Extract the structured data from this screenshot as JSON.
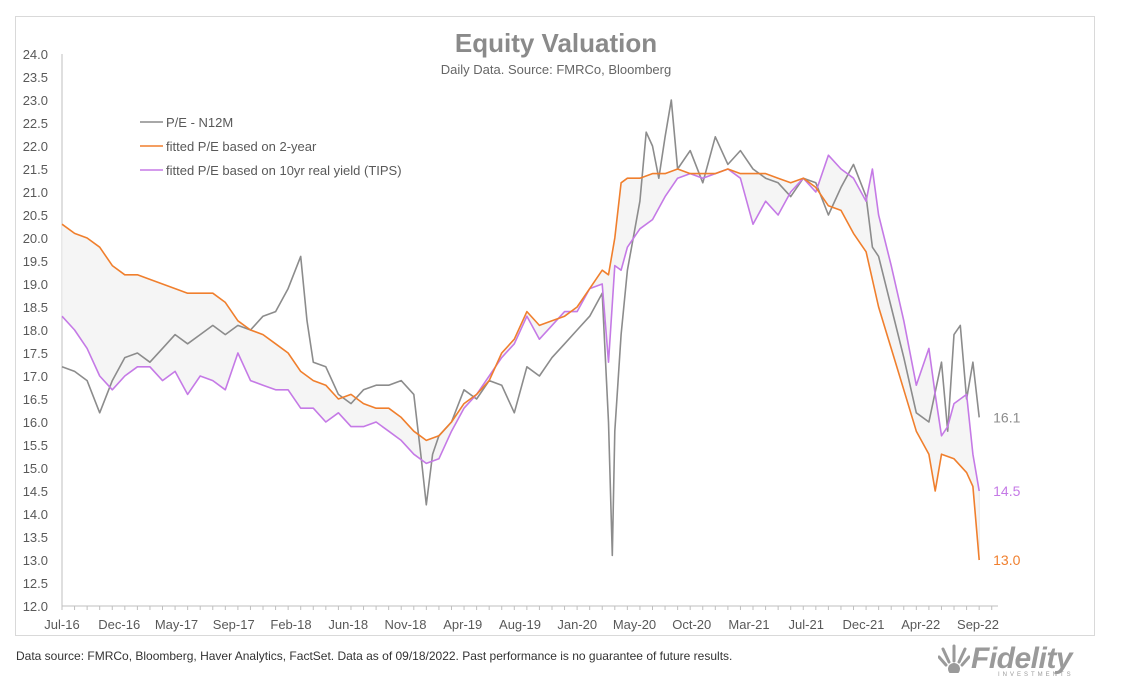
{
  "chart_data": {
    "type": "line",
    "title": "Equity Valuation",
    "subtitle": "Daily Data. Source: FMRCo, Bloomberg",
    "xlabel": "",
    "ylabel": "",
    "ylim": [
      12.0,
      24.0
    ],
    "y_ticks": [
      "12.0",
      "12.5",
      "13.0",
      "13.5",
      "14.0",
      "14.5",
      "15.0",
      "15.5",
      "16.0",
      "16.5",
      "17.0",
      "17.5",
      "18.0",
      "18.5",
      "19.0",
      "19.5",
      "20.0",
      "20.5",
      "21.0",
      "21.5",
      "22.0",
      "22.5",
      "23.0",
      "23.5",
      "24.0"
    ],
    "x_ticks": [
      "Jul-16",
      "Dec-16",
      "May-17",
      "Sep-17",
      "Feb-18",
      "Jun-18",
      "Nov-18",
      "Apr-19",
      "Aug-19",
      "Jan-20",
      "May-20",
      "Oct-20",
      "Mar-21",
      "Jul-21",
      "Dec-21",
      "Apr-22",
      "Sep-22"
    ],
    "x_range_months": [
      0,
      74.5
    ],
    "legend_position": "top-left",
    "grid": false,
    "shaded_band_between": [
      "fitted P/E based on 2-year",
      "fitted P/E based on 10yr real yield (TIPS)"
    ],
    "band_color": "#f5f5f5",
    "series": [
      {
        "name": "P/E - N12M",
        "color": "#8c8c8c",
        "end_label": "16.1",
        "points": [
          [
            0,
            17.2
          ],
          [
            1,
            17.1
          ],
          [
            2,
            16.9
          ],
          [
            3,
            16.2
          ],
          [
            4,
            16.9
          ],
          [
            5,
            17.4
          ],
          [
            6,
            17.5
          ],
          [
            7,
            17.3
          ],
          [
            8,
            17.6
          ],
          [
            9,
            17.9
          ],
          [
            10,
            17.7
          ],
          [
            11,
            17.9
          ],
          [
            12,
            18.1
          ],
          [
            13,
            17.9
          ],
          [
            14,
            18.1
          ],
          [
            15,
            18.0
          ],
          [
            16,
            18.3
          ],
          [
            17,
            18.4
          ],
          [
            18,
            18.9
          ],
          [
            19,
            19.6
          ],
          [
            19.5,
            18.2
          ],
          [
            20,
            17.3
          ],
          [
            21,
            17.2
          ],
          [
            22,
            16.6
          ],
          [
            23,
            16.4
          ],
          [
            24,
            16.7
          ],
          [
            25,
            16.8
          ],
          [
            26,
            16.8
          ],
          [
            27,
            16.9
          ],
          [
            28,
            16.6
          ],
          [
            28.6,
            15.2
          ],
          [
            29,
            14.2
          ],
          [
            29.5,
            15.3
          ],
          [
            30,
            15.7
          ],
          [
            31,
            16.0
          ],
          [
            32,
            16.7
          ],
          [
            33,
            16.5
          ],
          [
            34,
            16.9
          ],
          [
            35,
            16.8
          ],
          [
            36,
            16.2
          ],
          [
            37,
            17.2
          ],
          [
            38,
            17.0
          ],
          [
            39,
            17.4
          ],
          [
            40,
            17.7
          ],
          [
            41,
            18.0
          ],
          [
            42,
            18.3
          ],
          [
            43,
            18.8
          ],
          [
            43.5,
            16.0
          ],
          [
            43.8,
            13.1
          ],
          [
            44,
            15.8
          ],
          [
            44.5,
            17.9
          ],
          [
            45,
            19.3
          ],
          [
            46,
            20.8
          ],
          [
            46.5,
            22.3
          ],
          [
            47,
            22.0
          ],
          [
            47.5,
            21.3
          ],
          [
            48,
            22.2
          ],
          [
            48.5,
            23.0
          ],
          [
            49,
            21.5
          ],
          [
            50,
            21.9
          ],
          [
            51,
            21.2
          ],
          [
            52,
            22.2
          ],
          [
            53,
            21.6
          ],
          [
            54,
            21.9
          ],
          [
            55,
            21.5
          ],
          [
            56,
            21.3
          ],
          [
            57,
            21.2
          ],
          [
            58,
            20.9
          ],
          [
            59,
            21.3
          ],
          [
            60,
            21.2
          ],
          [
            61,
            20.5
          ],
          [
            62,
            21.1
          ],
          [
            63,
            21.6
          ],
          [
            64,
            20.9
          ],
          [
            64.5,
            19.8
          ],
          [
            65,
            19.6
          ],
          [
            66,
            18.5
          ],
          [
            67,
            17.4
          ],
          [
            68,
            16.2
          ],
          [
            69,
            16.0
          ],
          [
            70,
            17.3
          ],
          [
            70.5,
            15.8
          ],
          [
            71,
            17.9
          ],
          [
            71.5,
            18.1
          ],
          [
            72,
            16.5
          ],
          [
            72.5,
            17.3
          ],
          [
            73,
            16.1
          ]
        ]
      },
      {
        "name": "fitted P/E based on 2-year",
        "color": "#f07f2d",
        "end_label": "13.0",
        "points": [
          [
            0,
            20.3
          ],
          [
            1,
            20.1
          ],
          [
            2,
            20.0
          ],
          [
            3,
            19.8
          ],
          [
            4,
            19.4
          ],
          [
            5,
            19.2
          ],
          [
            6,
            19.2
          ],
          [
            7,
            19.1
          ],
          [
            8,
            19.0
          ],
          [
            9,
            18.9
          ],
          [
            10,
            18.8
          ],
          [
            11,
            18.8
          ],
          [
            12,
            18.8
          ],
          [
            13,
            18.6
          ],
          [
            14,
            18.2
          ],
          [
            15,
            18.0
          ],
          [
            16,
            17.9
          ],
          [
            17,
            17.7
          ],
          [
            18,
            17.5
          ],
          [
            19,
            17.1
          ],
          [
            20,
            16.9
          ],
          [
            21,
            16.8
          ],
          [
            22,
            16.5
          ],
          [
            23,
            16.6
          ],
          [
            24,
            16.4
          ],
          [
            25,
            16.3
          ],
          [
            26,
            16.3
          ],
          [
            27,
            16.1
          ],
          [
            28,
            15.8
          ],
          [
            29,
            15.6
          ],
          [
            30,
            15.7
          ],
          [
            31,
            16.0
          ],
          [
            32,
            16.4
          ],
          [
            33,
            16.6
          ],
          [
            34,
            16.9
          ],
          [
            35,
            17.5
          ],
          [
            36,
            17.8
          ],
          [
            37,
            18.4
          ],
          [
            38,
            18.1
          ],
          [
            39,
            18.2
          ],
          [
            40,
            18.3
          ],
          [
            41,
            18.5
          ],
          [
            42,
            18.9
          ],
          [
            43,
            19.3
          ],
          [
            43.5,
            19.2
          ],
          [
            44,
            20.0
          ],
          [
            44.5,
            21.2
          ],
          [
            45,
            21.3
          ],
          [
            46,
            21.3
          ],
          [
            47,
            21.4
          ],
          [
            48,
            21.4
          ],
          [
            49,
            21.5
          ],
          [
            50,
            21.4
          ],
          [
            51,
            21.4
          ],
          [
            52,
            21.4
          ],
          [
            53,
            21.5
          ],
          [
            54,
            21.4
          ],
          [
            55,
            21.4
          ],
          [
            56,
            21.4
          ],
          [
            57,
            21.3
          ],
          [
            58,
            21.2
          ],
          [
            59,
            21.3
          ],
          [
            60,
            21.1
          ],
          [
            61,
            20.7
          ],
          [
            62,
            20.6
          ],
          [
            63,
            20.1
          ],
          [
            64,
            19.7
          ],
          [
            65,
            18.5
          ],
          [
            66,
            17.6
          ],
          [
            67,
            16.7
          ],
          [
            68,
            15.8
          ],
          [
            69,
            15.3
          ],
          [
            69.5,
            14.5
          ],
          [
            70,
            15.3
          ],
          [
            71,
            15.2
          ],
          [
            72,
            14.9
          ],
          [
            72.5,
            14.6
          ],
          [
            73,
            13.0
          ]
        ]
      },
      {
        "name": "fitted P/E based on 10yr real yield (TIPS)",
        "color": "#c57ae6",
        "end_label": "14.5",
        "points": [
          [
            0,
            18.3
          ],
          [
            1,
            18.0
          ],
          [
            2,
            17.6
          ],
          [
            3,
            17.0
          ],
          [
            4,
            16.7
          ],
          [
            5,
            17.0
          ],
          [
            6,
            17.2
          ],
          [
            7,
            17.2
          ],
          [
            8,
            16.9
          ],
          [
            9,
            17.1
          ],
          [
            10,
            16.6
          ],
          [
            11,
            17.0
          ],
          [
            12,
            16.9
          ],
          [
            13,
            16.7
          ],
          [
            14,
            17.5
          ],
          [
            15,
            16.9
          ],
          [
            16,
            16.8
          ],
          [
            17,
            16.7
          ],
          [
            18,
            16.7
          ],
          [
            19,
            16.3
          ],
          [
            20,
            16.3
          ],
          [
            21,
            16.0
          ],
          [
            22,
            16.2
          ],
          [
            23,
            15.9
          ],
          [
            24,
            15.9
          ],
          [
            25,
            16.0
          ],
          [
            26,
            15.8
          ],
          [
            27,
            15.6
          ],
          [
            28,
            15.3
          ],
          [
            29,
            15.1
          ],
          [
            30,
            15.2
          ],
          [
            31,
            15.8
          ],
          [
            32,
            16.3
          ],
          [
            33,
            16.6
          ],
          [
            34,
            17.0
          ],
          [
            35,
            17.4
          ],
          [
            36,
            17.7
          ],
          [
            37,
            18.3
          ],
          [
            38,
            17.8
          ],
          [
            39,
            18.1
          ],
          [
            40,
            18.4
          ],
          [
            41,
            18.4
          ],
          [
            42,
            18.9
          ],
          [
            43,
            19.0
          ],
          [
            43.5,
            17.3
          ],
          [
            44,
            19.4
          ],
          [
            44.5,
            19.3
          ],
          [
            45,
            19.8
          ],
          [
            46,
            20.2
          ],
          [
            47,
            20.4
          ],
          [
            48,
            20.9
          ],
          [
            49,
            21.3
          ],
          [
            50,
            21.4
          ],
          [
            51,
            21.3
          ],
          [
            52,
            21.4
          ],
          [
            53,
            21.5
          ],
          [
            54,
            21.3
          ],
          [
            55,
            20.3
          ],
          [
            56,
            20.8
          ],
          [
            57,
            20.5
          ],
          [
            58,
            21.0
          ],
          [
            59,
            21.3
          ],
          [
            60,
            21.0
          ],
          [
            61,
            21.8
          ],
          [
            62,
            21.5
          ],
          [
            63,
            21.3
          ],
          [
            64,
            20.8
          ],
          [
            64.5,
            21.5
          ],
          [
            65,
            20.5
          ],
          [
            66,
            19.4
          ],
          [
            67,
            18.2
          ],
          [
            68,
            16.8
          ],
          [
            69,
            17.6
          ],
          [
            69.5,
            16.6
          ],
          [
            70,
            15.7
          ],
          [
            70.5,
            15.9
          ],
          [
            71,
            16.4
          ],
          [
            72,
            16.6
          ],
          [
            72.5,
            15.3
          ],
          [
            73,
            14.5
          ]
        ]
      }
    ]
  },
  "footer": {
    "note": "Data source: FMRCo, Bloomberg, Haver Analytics, FactSet. Data as of 09/18/2022. Past performance is no guarantee of future results."
  },
  "brand": {
    "logo_text": "Fidelity",
    "logo_sub": "INVESTMENTS",
    "logo_color": "#9a9a9a"
  }
}
